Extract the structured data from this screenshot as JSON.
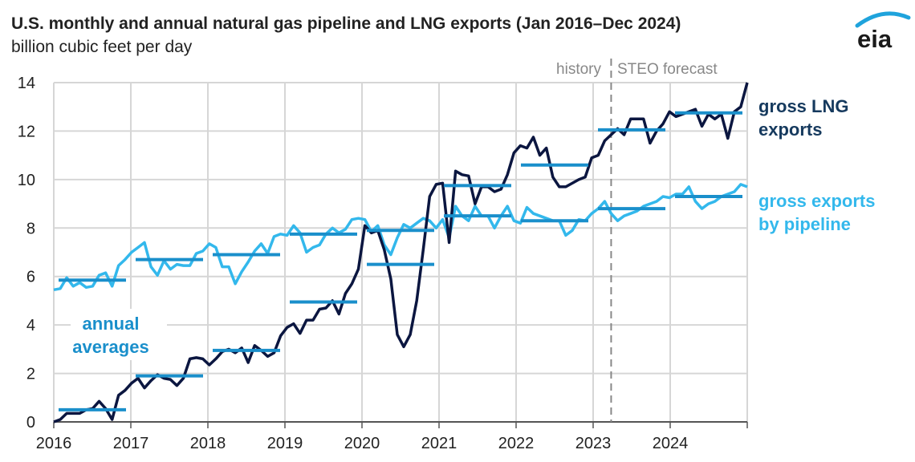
{
  "logo": {
    "text": "eia",
    "arc_color": "#1fa3dc",
    "text_color": "#1a1a1a"
  },
  "chart_data": {
    "type": "line",
    "title": "U.S. monthly and annual natural gas pipeline and LNG exports (Jan 2016–Dec 2024)",
    "subtitle": "billion cubic feet per day",
    "xlabel": "",
    "ylabel": "",
    "x_start": "2016-01",
    "x_end": "2024-12",
    "x_frequency": "monthly",
    "x_tick_labels": [
      "2016",
      "2017",
      "2018",
      "2019",
      "2020",
      "2021",
      "2022",
      "2023",
      "2024"
    ],
    "ylim": [
      0,
      14
    ],
    "y_tick_labels": [
      "0",
      "2",
      "4",
      "6",
      "8",
      "10",
      "12",
      "14"
    ],
    "y_ticks": [
      0,
      2,
      4,
      6,
      8,
      10,
      12,
      14
    ],
    "grid": true,
    "forecast_start": "2023-03",
    "annotations": {
      "history": "history",
      "forecast": "STEO forecast",
      "annual_averages": "annual averages"
    },
    "series": [
      {
        "name": "gross LNG exports",
        "color": "#0b1640",
        "values": [
          0.0,
          0.1,
          0.35,
          0.35,
          0.35,
          0.5,
          0.55,
          0.85,
          0.55,
          0.1,
          1.1,
          1.3,
          1.6,
          1.8,
          1.4,
          1.7,
          1.95,
          1.8,
          1.75,
          1.5,
          1.8,
          2.6,
          2.65,
          2.6,
          2.35,
          2.6,
          2.9,
          3.0,
          2.85,
          3.05,
          2.45,
          3.15,
          2.95,
          2.7,
          2.85,
          3.55,
          3.9,
          4.05,
          3.65,
          4.2,
          4.2,
          4.65,
          4.7,
          5.0,
          4.45,
          5.3,
          5.7,
          6.3,
          8.1,
          7.8,
          7.9,
          7.1,
          5.9,
          3.6,
          3.1,
          3.6,
          5.0,
          7.1,
          9.3,
          9.8,
          9.85,
          7.4,
          10.35,
          10.2,
          10.15,
          9.0,
          9.7,
          9.7,
          9.5,
          9.6,
          10.2,
          11.1,
          11.4,
          11.3,
          11.75,
          11.0,
          11.3,
          10.1,
          9.7,
          9.7,
          9.85,
          10.0,
          10.1,
          10.9,
          11.0,
          11.6,
          11.85,
          12.1,
          11.85,
          12.5,
          12.5,
          12.5,
          11.5,
          12.0,
          12.3,
          12.8,
          12.6,
          12.7,
          12.8,
          12.9,
          12.2,
          12.7,
          12.5,
          12.7,
          11.7,
          12.8,
          13.0,
          14.0
        ],
        "annual_averages": [
          0.5,
          1.9,
          2.95,
          4.95,
          6.5,
          9.75,
          10.6,
          12.05,
          12.75
        ]
      },
      {
        "name": "gross exports by pipeline",
        "color": "#33b8ec",
        "values": [
          5.45,
          5.5,
          5.95,
          5.6,
          5.75,
          5.55,
          5.6,
          6.05,
          6.15,
          5.6,
          6.45,
          6.7,
          7.0,
          7.2,
          7.4,
          6.4,
          6.05,
          6.65,
          6.3,
          6.5,
          6.45,
          6.45,
          6.95,
          7.05,
          7.35,
          7.2,
          6.4,
          6.4,
          5.7,
          6.2,
          6.6,
          7.05,
          7.35,
          6.95,
          7.65,
          7.75,
          7.7,
          8.1,
          7.8,
          7.0,
          7.2,
          7.3,
          7.75,
          8.0,
          7.8,
          7.95,
          8.35,
          8.4,
          8.35,
          7.85,
          8.1,
          7.3,
          6.9,
          7.6,
          8.15,
          8.0,
          8.2,
          8.4,
          8.3,
          8.0,
          8.35,
          7.6,
          8.9,
          8.5,
          8.3,
          8.9,
          8.5,
          8.5,
          8.0,
          8.5,
          8.9,
          8.3,
          8.2,
          8.85,
          8.6,
          8.5,
          8.4,
          8.3,
          8.3,
          7.7,
          7.9,
          8.35,
          8.3,
          8.6,
          8.8,
          9.1,
          8.6,
          8.3,
          8.5,
          8.6,
          8.7,
          8.9,
          9.0,
          9.1,
          9.3,
          9.25,
          9.4,
          9.4,
          9.7,
          9.1,
          8.8,
          9.0,
          9.1,
          9.3,
          9.4,
          9.5,
          9.8,
          9.7
        ],
        "annual_averages": [
          5.85,
          6.7,
          6.9,
          7.75,
          7.9,
          8.5,
          8.3,
          8.8,
          9.3
        ]
      }
    ],
    "annual_average_color": "#1a8fcb",
    "legend": {
      "lng_line1": "gross LNG",
      "lng_line2": "exports",
      "pipe_line1": "gross exports",
      "pipe_line2": "by pipeline",
      "avg_line1": "annual",
      "avg_line2": "averages",
      "placement": "right"
    }
  }
}
